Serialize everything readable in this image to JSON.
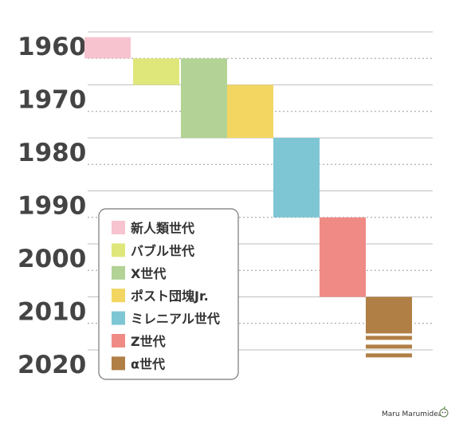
{
  "chart_data": {
    "type": "bar",
    "orientation": "timeline",
    "y_axis": {
      "ticks": [
        1960,
        1970,
        1980,
        1990,
        2000,
        2010,
        2020
      ],
      "range": [
        1960,
        2020
      ]
    },
    "series": [
      {
        "name": "新人類世代",
        "start": 1961,
        "end": 1965,
        "color": "#f7c3cf"
      },
      {
        "name": "バブル世代",
        "start": 1965,
        "end": 1970,
        "color": "#dfe77a"
      },
      {
        "name": "X世代",
        "start": 1965,
        "end": 1980,
        "color": "#b3d296"
      },
      {
        "name": "ポスト団塊Jr.",
        "start": 1970,
        "end": 1980,
        "color": "#f2d661"
      },
      {
        "name": "ミレニアル世代",
        "start": 1980,
        "end": 1995,
        "color": "#7ec6d4"
      },
      {
        "name": "Z世代",
        "start": 1995,
        "end": 2010,
        "color": "#f08a85"
      },
      {
        "name": "α世代",
        "start": 2010,
        "end": null,
        "color": "#b07f45",
        "ongoing": true
      }
    ],
    "legend_position": "bottom-left",
    "grid": true
  },
  "credit": "Maru Marumidea"
}
